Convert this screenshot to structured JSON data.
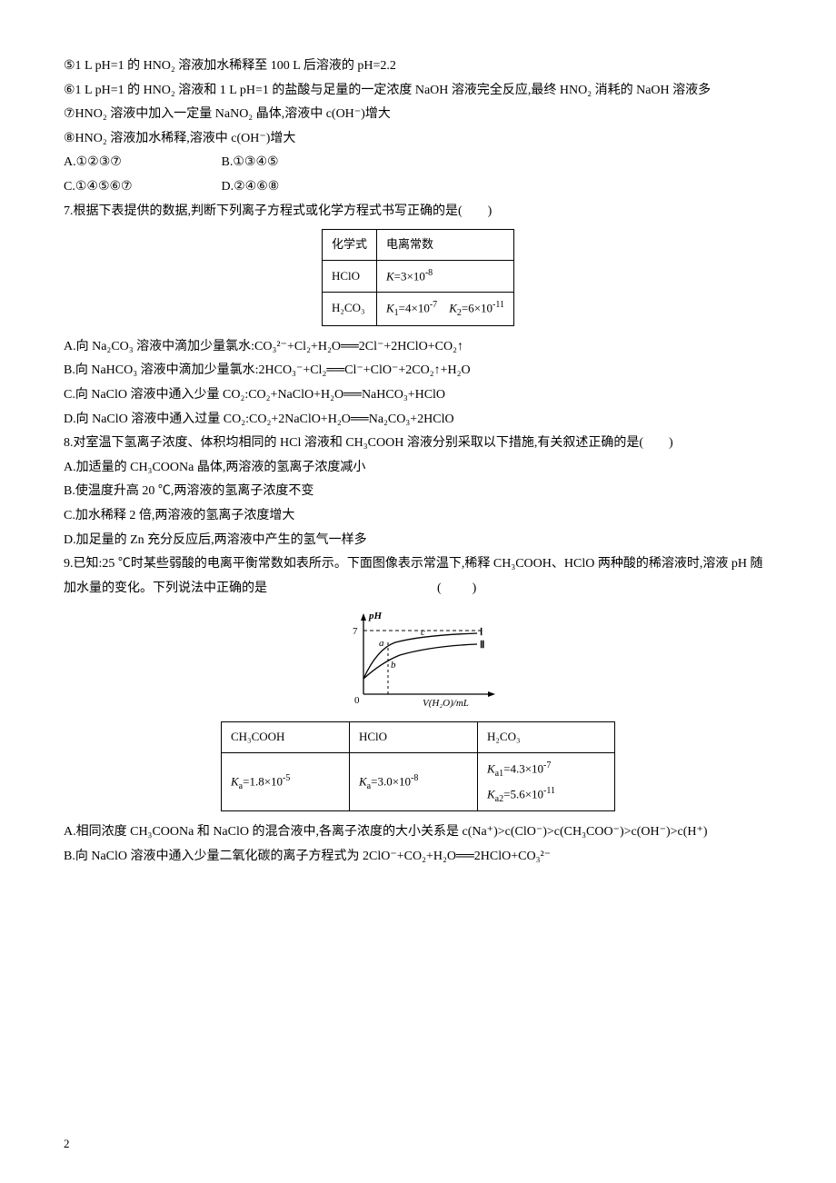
{
  "lines": {
    "s5": "⑤1 L pH=1 的 HNO₂ 溶液加水稀释至 100 L 后溶液的 pH=2.2",
    "s6": "⑥1 L pH=1 的 HNO₂ 溶液和 1 L pH=1 的盐酸与足量的一定浓度 NaOH 溶液完全反应,最终 HNO₂ 消耗的 NaOH 溶液多",
    "s7": "⑦HNO₂ 溶液中加入一定量 NaNO₂ 晶体,溶液中 c(OH⁻)增大",
    "s8": "⑧HNO₂ 溶液加水稀释,溶液中 c(OH⁻)增大",
    "optA": "A.①②③⑦",
    "optB": "B.①③④⑤",
    "optC": "C.①④⑤⑥⑦",
    "optD": "D.②④⑥⑧"
  },
  "q7": {
    "stem": "根据下表提供的数据,判断下列离子方程式或化学方程式书写正确的是(　　)",
    "table": {
      "h1": "化学式",
      "h2": "电离常数",
      "r1c1": "HClO",
      "r1c2": "K=3×10⁻⁸",
      "r2c1": "H₂CO₃",
      "r2c2": "K₁=4×10⁻⁷　K₂=6×10⁻¹¹"
    },
    "A": "A.向 Na₂CO₃ 溶液中滴加少量氯水:CO₃²⁻+Cl₂+H₂O══2Cl⁻+2HClO+CO₂↑",
    "B": "B.向 NaHCO₃ 溶液中滴加少量氯水:2HCO₃⁻+Cl₂══Cl⁻+ClO⁻+2CO₂↑+H₂O",
    "C": "C.向 NaClO 溶液中通入少量 CO₂:CO₂+NaClO+H₂O══NaHCO₃+HClO",
    "D": "D.向 NaClO 溶液中通入过量 CO₂:CO₂+2NaClO+H₂O══Na₂CO₃+2HClO"
  },
  "q8": {
    "stem": "对室温下氢离子浓度、体积均相同的 HCl 溶液和 CH₃COOH 溶液分别采取以下措施,有关叙述正确的是(　　)",
    "A": "A.加适量的 CH₃COONa 晶体,两溶液的氢离子浓度减小",
    "B": "B.使温度升高 20 ℃,两溶液的氢离子浓度不变",
    "C": "C.加水稀释 2 倍,两溶液的氢离子浓度增大",
    "D": "D.加足量的 Zn 充分反应后,两溶液中产生的氢气一样多"
  },
  "q9": {
    "stem1": "已知:25 ℃时某些弱酸的电离平衡常数如表所示。下面图像表示常温下,稀释 CH₃COOH、HClO 两种酸的稀溶液时,溶液 pH 随加水量的变化。下列说法中正确的是",
    "stem_paren": "(　　)",
    "chart": {
      "ylabel": "pH",
      "ymax_label": "7",
      "xlabel": "V(H₂O)/mL",
      "curve1_label": "Ⅰ",
      "curve2_label": "Ⅱ",
      "point_a": "a",
      "point_b": "b",
      "point_c": "c",
      "axis_color": "#000000",
      "curve_color": "#000000",
      "dash_color": "#000000",
      "bg": "#ffffff",
      "line_width": 1.3,
      "width": 190,
      "height": 110
    },
    "table": {
      "h1": "CH₃COOH",
      "h2": "HClO",
      "h3": "H₂CO₃",
      "r1": "Kₐ=1.8×10⁻⁵",
      "r2": "Kₐ=3.0×10⁻⁸",
      "r3a": "Kₐ₁=4.3×10⁻⁷",
      "r3b": "Kₐ₂=5.6×10⁻¹¹"
    },
    "A": "A.相同浓度 CH₃COONa 和 NaClO 的混合液中,各离子浓度的大小关系是 c(Na⁺)>c(ClO⁻)>c(CH₃COO⁻)>c(OH⁻)>c(H⁺)",
    "B": "B.向 NaClO 溶液中通入少量二氧化碳的离子方程式为 2ClO⁻+CO₂+H₂O══2HClO+CO₃²⁻"
  },
  "page_number": "2"
}
